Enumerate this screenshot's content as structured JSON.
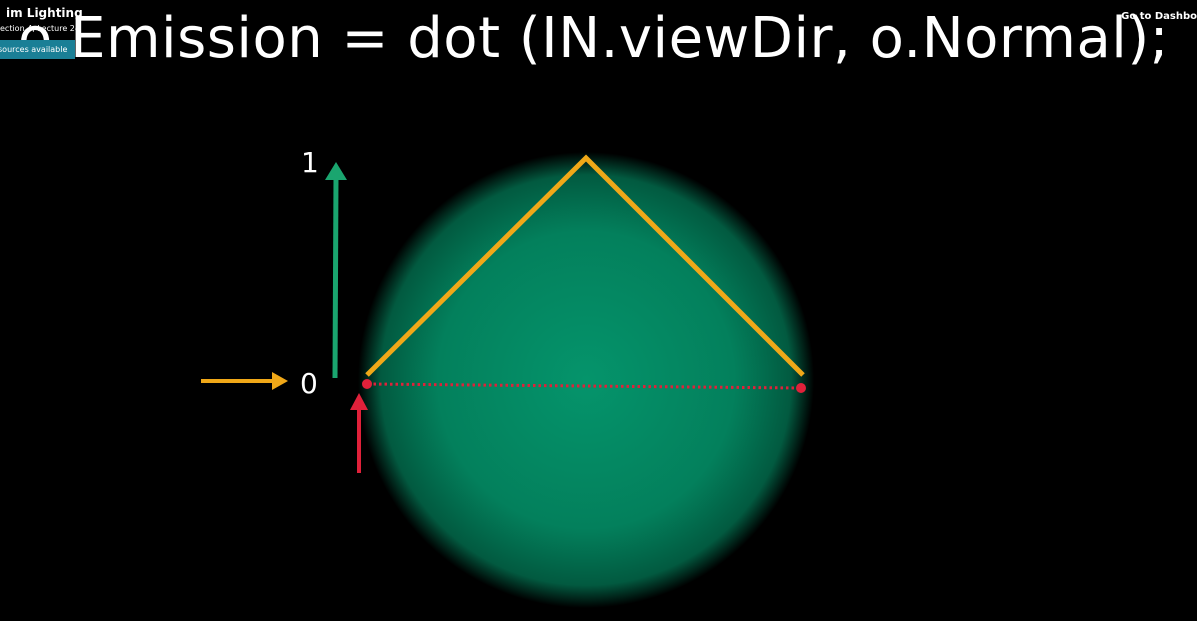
{
  "header": {
    "lecture_title": "im Lighting",
    "lecture_subtitle": "ection 4, Lecture 24",
    "resources_label": "sources available",
    "dashboard_label": "Go to Dashbo"
  },
  "slide": {
    "code_line": "o.Emission =  dot (IN.viewDir, o.Normal);",
    "label_top": "1",
    "label_zero": "0"
  },
  "colors": {
    "sphere_center": "#04986f",
    "green_arrow": "#1aa56f",
    "orange_line": "#f0a818",
    "red": "#e0213a"
  }
}
